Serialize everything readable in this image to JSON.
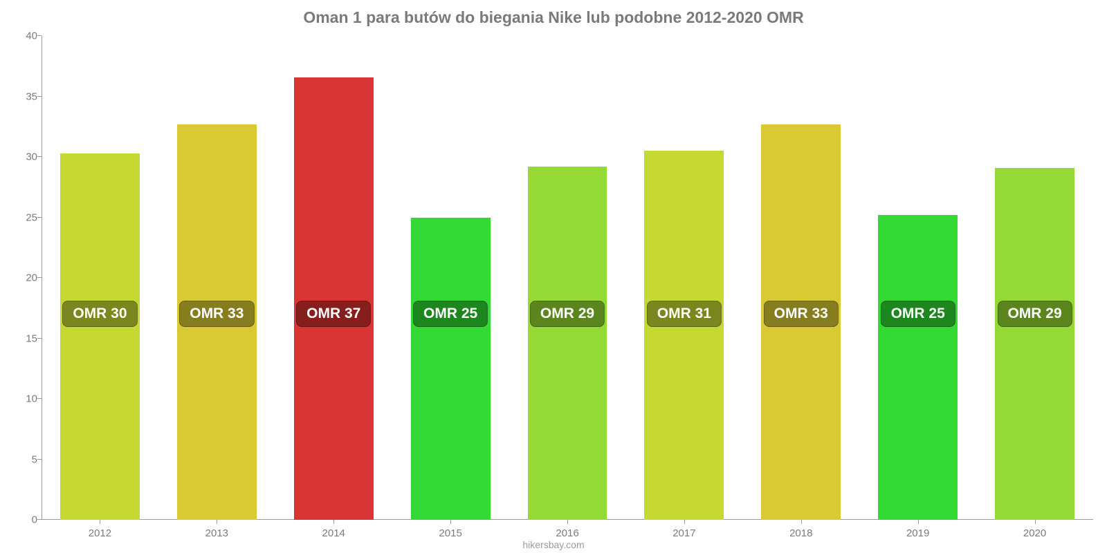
{
  "chart": {
    "type": "bar",
    "title": "Oman 1 para butów do biegania Nike lub podobne 2012-2020 OMR",
    "title_color": "#7a7a7a",
    "title_fontsize": 23,
    "source": "hikersbay.com",
    "background_color": "#ffffff",
    "axis_color": "#999999",
    "tick_label_color": "#7a7a7a",
    "tick_label_fontsize": 15,
    "ylim": [
      0,
      40
    ],
    "ytick_step": 5,
    "yticks": [
      0,
      5,
      10,
      15,
      20,
      25,
      30,
      35,
      40
    ],
    "bar_width": 0.68,
    "data_label_fontsize": 21,
    "categories": [
      "2012",
      "2013",
      "2014",
      "2015",
      "2016",
      "2017",
      "2018",
      "2019",
      "2020"
    ],
    "values": [
      30.3,
      32.7,
      36.6,
      25.0,
      29.2,
      30.5,
      32.7,
      25.2,
      29.1
    ],
    "data_labels": [
      "OMR 30",
      "OMR 33",
      "OMR 37",
      "OMR 25",
      "OMR 29",
      "OMR 31",
      "OMR 33",
      "OMR 25",
      "OMR 29"
    ],
    "bar_colors": [
      "#c5d935",
      "#d9ca35",
      "#d93535",
      "#35d935",
      "#94d935",
      "#c5d935",
      "#d9ca35",
      "#35d935",
      "#94d935"
    ],
    "label_bg_colors": [
      "#7a861e",
      "#867d1e",
      "#861e1e",
      "#1e861e",
      "#5b861e",
      "#7a861e",
      "#867d1e",
      "#1e861e",
      "#5b861e"
    ],
    "label_y_value": 17
  }
}
